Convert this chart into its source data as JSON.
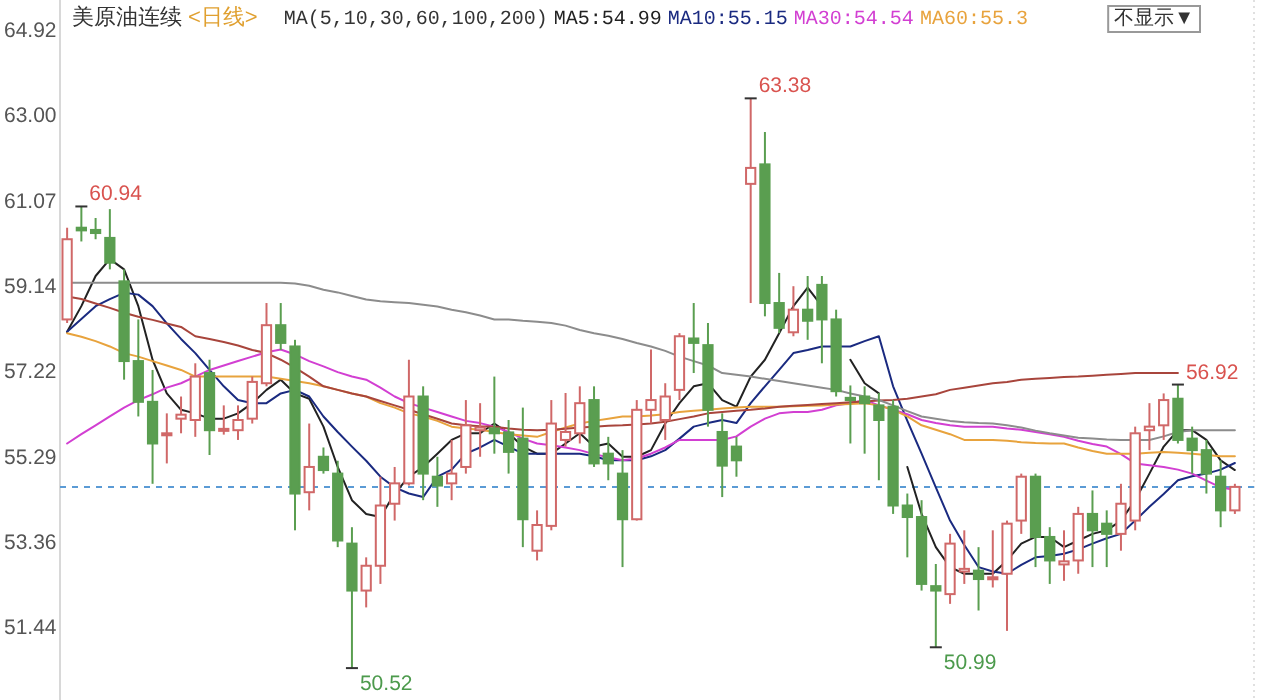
{
  "chart_data": {
    "type": "candlestick",
    "title": "美原油连续",
    "subtitle": "<日线>",
    "categories": [
      null,
      null,
      null,
      null,
      null,
      null,
      null,
      null,
      null,
      null,
      null,
      null,
      null,
      null,
      null,
      null,
      null,
      null,
      null,
      null,
      null,
      null,
      null,
      null,
      null,
      null,
      null,
      null,
      null,
      null,
      null,
      null,
      null,
      null,
      null,
      null,
      null,
      null,
      null,
      null,
      null,
      null,
      null,
      null,
      null,
      null,
      null,
      null,
      null,
      null,
      null,
      null,
      null,
      null,
      null,
      null,
      null,
      null,
      null,
      null,
      null,
      null,
      null,
      null,
      null,
      null,
      null,
      null,
      null,
      null,
      null,
      null,
      null,
      null,
      null,
      null,
      null,
      null,
      null,
      null,
      null,
      null,
      null
    ],
    "ohlc": [
      [
        58.39,
        60.46,
        58.31,
        60.2
      ],
      [
        60.46,
        60.94,
        60.15,
        60.4
      ],
      [
        60.41,
        60.68,
        60.2,
        60.34
      ],
      [
        60.23,
        60.88,
        59.52,
        59.67
      ],
      [
        59.25,
        59.52,
        57.03,
        57.45
      ],
      [
        57.45,
        58.39,
        56.2,
        56.53
      ],
      [
        56.53,
        57.25,
        54.68,
        55.59
      ],
      [
        55.78,
        56.27,
        55.14,
        55.82
      ],
      [
        56.15,
        56.65,
        55.82,
        56.24
      ],
      [
        56.12,
        57.4,
        55.74,
        57.1
      ],
      [
        57.18,
        57.48,
        55.33,
        55.89
      ],
      [
        55.88,
        56.45,
        55.79,
        55.92
      ],
      [
        55.89,
        56.45,
        55.67,
        56.12
      ],
      [
        56.15,
        57.1,
        56.04,
        56.98
      ],
      [
        56.95,
        58.76,
        56.88,
        58.26
      ],
      [
        58.26,
        58.76,
        57.7,
        57.86
      ],
      [
        57.78,
        57.93,
        53.63,
        54.46
      ],
      [
        54.49,
        56.04,
        54.08,
        55.06
      ],
      [
        55.29,
        55.5,
        54.91,
        54.99
      ],
      [
        54.91,
        55.2,
        53.25,
        53.4
      ],
      [
        53.33,
        53.7,
        50.52,
        52.27
      ],
      [
        52.27,
        53.02,
        51.89,
        52.83
      ],
      [
        52.83,
        54.84,
        52.42,
        54.19
      ],
      [
        54.23,
        55.06,
        53.85,
        54.69
      ],
      [
        54.69,
        57.48,
        54.64,
        56.65
      ],
      [
        56.65,
        56.88,
        54.31,
        54.91
      ],
      [
        54.84,
        55.29,
        54.16,
        54.64
      ],
      [
        54.69,
        55.67,
        54.31,
        54.91
      ],
      [
        55.06,
        56.57,
        54.91,
        56.0
      ],
      [
        55.89,
        56.5,
        55.29,
        55.95
      ],
      [
        55.93,
        57.1,
        55.36,
        55.82
      ],
      [
        55.84,
        56.12,
        54.91,
        55.4
      ],
      [
        55.7,
        56.4,
        53.25,
        53.88
      ],
      [
        53.17,
        54.08,
        52.95,
        53.75
      ],
      [
        53.73,
        56.57,
        53.63,
        56.04
      ],
      [
        55.67,
        56.73,
        55.52,
        55.85
      ],
      [
        55.82,
        56.88,
        55.59,
        56.5
      ],
      [
        56.57,
        56.88,
        55.06,
        55.14
      ],
      [
        55.36,
        55.74,
        54.76,
        55.14
      ],
      [
        54.91,
        55.44,
        52.8,
        53.88
      ],
      [
        53.88,
        56.57,
        53.85,
        56.35
      ],
      [
        56.35,
        57.71,
        56.04,
        56.57
      ],
      [
        56.12,
        56.95,
        55.67,
        56.65
      ],
      [
        56.8,
        58.08,
        56.57,
        58.01
      ],
      [
        57.96,
        58.76,
        57.18,
        57.86
      ],
      [
        57.81,
        58.31,
        55.97,
        56.35
      ],
      [
        55.85,
        56.27,
        54.38,
        55.09
      ],
      [
        55.52,
        55.74,
        54.84,
        55.21
      ],
      [
        61.45,
        63.38,
        58.76,
        61.81
      ],
      [
        61.89,
        62.62,
        58.46,
        58.76
      ],
      [
        58.76,
        59.44,
        58.08,
        58.2
      ],
      [
        58.1,
        59.14,
        58.01,
        58.61
      ],
      [
        58.61,
        59.37,
        57.93,
        58.36
      ],
      [
        59.17,
        59.37,
        57.4,
        58.39
      ],
      [
        58.39,
        58.61,
        56.65,
        56.77
      ],
      [
        56.62,
        56.9,
        55.59,
        56.57
      ],
      [
        56.65,
        56.88,
        55.36,
        56.5
      ],
      [
        56.45,
        56.73,
        54.76,
        56.12
      ],
      [
        56.42,
        56.57,
        54.0,
        54.19
      ],
      [
        54.19,
        54.46,
        53.02,
        53.93
      ],
      [
        53.93,
        54.31,
        52.27,
        52.42
      ],
      [
        52.37,
        52.87,
        50.99,
        52.27
      ],
      [
        52.19,
        53.55,
        51.97,
        53.33
      ],
      [
        52.7,
        53.63,
        52.42,
        52.76
      ],
      [
        52.72,
        53.25,
        51.82,
        52.53
      ],
      [
        52.53,
        53.63,
        52.34,
        52.57
      ],
      [
        52.65,
        53.85,
        51.36,
        53.78
      ],
      [
        53.85,
        54.91,
        53.55,
        54.84
      ],
      [
        54.84,
        54.91,
        52.8,
        53.48
      ],
      [
        53.48,
        53.7,
        52.42,
        52.95
      ],
      [
        52.86,
        53.63,
        52.49,
        52.93
      ],
      [
        52.95,
        54.16,
        52.65,
        54.0
      ],
      [
        54.0,
        54.53,
        52.8,
        53.63
      ],
      [
        53.78,
        54.08,
        52.8,
        53.55
      ],
      [
        53.55,
        54.68,
        53.17,
        54.23
      ],
      [
        53.85,
        55.97,
        53.63,
        55.82
      ],
      [
        55.89,
        56.5,
        55.44,
        55.97
      ],
      [
        56.0,
        56.72,
        55.67,
        56.57
      ],
      [
        56.6,
        56.92,
        55.59,
        55.67
      ],
      [
        55.7,
        55.97,
        54.91,
        55.44
      ],
      [
        55.44,
        55.67,
        54.46,
        54.91
      ],
      [
        54.84,
        55.21,
        53.7,
        54.08
      ],
      [
        54.08,
        54.68,
        54.0,
        54.61
      ]
    ],
    "colors": [
      "#d06868",
      "#5a9e50",
      "#5a9e50",
      "#5a9e50",
      "#5a9e50",
      "#5a9e50",
      "#5a9e50",
      "#d06868",
      "#d06868",
      "#d06868",
      "#5a9e50",
      "#d06868",
      "#d06868",
      "#d06868",
      "#d06868",
      "#5a9e50",
      "#5a9e50",
      "#d06868",
      "#5a9e50",
      "#5a9e50",
      "#5a9e50",
      "#d06868",
      "#d06868",
      "#d06868",
      "#d06868",
      "#5a9e50",
      "#5a9e50",
      "#d06868",
      "#d06868",
      "#d06868",
      "#5a9e50",
      "#5a9e50",
      "#5a9e50",
      "#d06868",
      "#d06868",
      "#d06868",
      "#d06868",
      "#5a9e50",
      "#5a9e50",
      "#5a9e50",
      "#d06868",
      "#d06868",
      "#d06868",
      "#d06868",
      "#5a9e50",
      "#5a9e50",
      "#5a9e50",
      "#5a9e50",
      "#d06868",
      "#5a9e50",
      "#5a9e50",
      "#d06868",
      "#5a9e50",
      "#5a9e50",
      "#5a9e50",
      "#5a9e50",
      "#5a9e50",
      "#5a9e50",
      "#5a9e50",
      "#5a9e50",
      "#5a9e50",
      "#5a9e50",
      "#d06868",
      "#d06868",
      "#5a9e50",
      "#d06868",
      "#d06868",
      "#d06868",
      "#5a9e50",
      "#5a9e50",
      "#d06868",
      "#d06868",
      "#5a9e50",
      "#5a9e50",
      "#d06868",
      "#d06868",
      "#d06868",
      "#d06868",
      "#5a9e50",
      "#5a9e50",
      "#5a9e50",
      "#5a9e50",
      "#d06868"
    ],
    "series": [
      {
        "type": "line",
        "name": "MA5:54.99",
        "color": "#222222",
        "values": [
          58.11,
          58.69,
          59.37,
          59.75,
          59.52,
          58.69,
          57.48,
          56.72,
          56.35,
          56.27,
          56.15,
          56.15,
          56.27,
          56.5,
          56.8,
          57.03,
          56.72,
          56.6,
          55.97,
          55.06,
          54.31,
          54.0,
          53.93,
          54.46,
          54.84,
          55.06,
          55.36,
          55.67,
          55.82,
          55.82,
          56.04,
          55.82,
          55.52,
          55.36,
          55.36,
          55.59,
          55.82,
          55.52,
          55.59,
          55.29,
          55.29,
          55.44,
          56.04,
          56.5,
          56.88,
          56.95,
          56.57,
          56.42,
          57.1,
          57.48,
          58.08,
          58.69,
          59.11,
          58.69,
          null,
          57.48,
          56.95,
          56.72,
          null,
          55.06,
          54.0,
          53.25,
          52.8,
          52.65,
          52.65,
          52.65,
          52.95,
          53.33,
          53.48,
          53.48,
          53.25,
          53.4,
          53.55,
          53.63,
          53.85,
          54.31,
          54.91,
          55.52,
          55.89,
          55.89,
          55.67,
          55.21,
          54.99
        ]
      },
      {
        "type": "line",
        "name": "MA10:55.15",
        "color": "#1a2a80",
        "values": [
          58.11,
          58.4,
          58.69,
          58.85,
          58.99,
          58.95,
          58.69,
          58.3,
          57.95,
          57.63,
          57.25,
          56.88,
          56.57,
          56.5,
          56.5,
          56.72,
          56.8,
          56.65,
          56.2,
          55.85,
          55.52,
          55.2,
          54.84,
          54.6,
          54.46,
          54.38,
          54.84,
          55.0,
          55.36,
          55.5,
          55.67,
          55.52,
          55.36,
          55.36,
          55.36,
          55.36,
          55.36,
          55.3,
          55.21,
          55.21,
          55.21,
          55.3,
          55.44,
          55.7,
          55.97,
          56.05,
          56.12,
          56.05,
          56.5,
          56.88,
          57.25,
          57.63,
          57.7,
          57.78,
          57.78,
          57.78,
          57.9,
          58.01,
          56.88,
          56.1,
          55.36,
          54.6,
          53.85,
          53.3,
          52.8,
          52.7,
          52.65,
          52.85,
          53.02,
          53.05,
          53.1,
          53.2,
          53.33,
          53.45,
          53.55,
          53.85,
          54.16,
          54.45,
          54.76,
          54.85,
          54.91,
          55.0,
          55.15
        ]
      },
      {
        "type": "line",
        "name": "MA30:54.54",
        "color": "#d23fd2",
        "values": [
          55.59,
          55.8,
          56.0,
          56.2,
          56.4,
          56.57,
          56.7,
          56.85,
          56.95,
          57.1,
          57.25,
          57.35,
          57.45,
          57.55,
          57.65,
          57.71,
          57.6,
          57.45,
          57.33,
          57.2,
          57.1,
          57.03,
          56.85,
          56.65,
          56.5,
          56.4,
          56.3,
          56.2,
          56.1,
          56.05,
          55.97,
          55.85,
          55.7,
          55.59,
          55.55,
          55.5,
          55.44,
          55.35,
          55.28,
          55.21,
          55.25,
          55.36,
          55.5,
          55.67,
          55.67,
          55.67,
          55.67,
          55.75,
          55.97,
          56.15,
          56.27,
          56.3,
          56.3,
          56.35,
          56.45,
          56.5,
          56.57,
          56.45,
          56.35,
          56.25,
          56.12,
          56.05,
          56.0,
          55.97,
          55.97,
          55.97,
          55.93,
          55.9,
          55.85,
          55.8,
          55.74,
          55.65,
          55.58,
          55.52,
          55.35,
          55.14,
          55.1,
          55.06,
          55.0,
          54.91,
          54.75,
          54.6,
          54.54
        ]
      },
      {
        "type": "line",
        "name": "MA60:55.3",
        "color": "#e8a33d",
        "values": [
          58.08,
          58.0,
          57.9,
          57.78,
          57.63,
          57.55,
          57.45,
          57.35,
          57.25,
          57.1,
          57.1,
          57.1,
          57.1,
          57.1,
          57.1,
          57.05,
          57.0,
          56.95,
          56.88,
          56.8,
          56.72,
          56.65,
          56.5,
          56.4,
          56.27,
          56.2,
          56.1,
          55.97,
          55.93,
          55.9,
          55.85,
          55.8,
          55.77,
          55.74,
          55.85,
          55.95,
          56.04,
          56.1,
          56.15,
          56.2,
          56.2,
          56.22,
          56.25,
          56.3,
          56.33,
          56.35,
          56.38,
          56.4,
          56.42,
          56.42,
          56.42,
          56.43,
          56.44,
          56.45,
          56.47,
          56.48,
          56.5,
          56.45,
          56.35,
          56.2,
          56.0,
          55.9,
          55.8,
          55.67,
          55.67,
          55.67,
          55.65,
          55.62,
          55.6,
          55.59,
          55.59,
          55.5,
          55.42,
          55.36,
          55.36,
          55.36,
          55.38,
          55.4,
          55.38,
          55.36,
          55.33,
          55.3,
          55.3
        ]
      },
      {
        "type": "line",
        "color": "#a8453c",
        "values": [
          58.91,
          58.85,
          58.75,
          58.65,
          58.54,
          58.45,
          58.38,
          58.3,
          58.22,
          58.01,
          57.95,
          57.88,
          57.8,
          57.7,
          57.63,
          57.48,
          57.3,
          57.1,
          56.88,
          56.8,
          56.72,
          56.65,
          56.55,
          56.45,
          56.35,
          56.25,
          56.15,
          56.04,
          56.0,
          55.98,
          55.97,
          55.93,
          55.9,
          55.89,
          55.9,
          55.92,
          55.95,
          55.97,
          55.99,
          56.0,
          56.02,
          56.04,
          56.08,
          56.14,
          56.2,
          56.27,
          56.3,
          56.33,
          56.35,
          56.38,
          56.42,
          56.44,
          56.46,
          56.48,
          56.5,
          56.52,
          56.54,
          56.56,
          56.57,
          56.6,
          56.65,
          56.7,
          56.8,
          56.85,
          56.9,
          56.95,
          56.98,
          57.03,
          57.05,
          57.07,
          57.09,
          57.1,
          57.12,
          57.14,
          57.16,
          57.18,
          57.18,
          57.18,
          57.18,
          null,
          null,
          null,
          null
        ]
      },
      {
        "type": "line",
        "color": "#8c8c8c",
        "values": [
          59.22,
          59.22,
          59.22,
          59.22,
          59.22,
          59.22,
          59.22,
          59.22,
          59.22,
          59.22,
          59.22,
          59.22,
          59.22,
          59.22,
          59.22,
          59.22,
          59.2,
          59.15,
          59.06,
          59.0,
          58.92,
          58.84,
          58.8,
          58.78,
          58.76,
          58.72,
          58.68,
          58.61,
          58.55,
          58.48,
          58.39,
          58.39,
          58.36,
          58.34,
          58.31,
          58.25,
          58.15,
          58.08,
          58.02,
          57.95,
          57.86,
          57.78,
          57.68,
          57.55,
          57.45,
          57.35,
          57.18,
          57.14,
          57.1,
          57.05,
          57.0,
          56.95,
          56.9,
          56.85,
          56.8,
          56.72,
          56.65,
          56.57,
          56.45,
          56.32,
          56.2,
          56.15,
          56.1,
          56.07,
          56.05,
          56.04,
          56.0,
          55.95,
          55.88,
          55.82,
          55.77,
          55.72,
          55.7,
          55.68,
          55.67,
          55.67,
          55.67,
          55.75,
          55.85,
          55.89,
          55.89,
          55.89,
          55.89
        ]
      }
    ],
    "ylim": [
      49.8,
      65.6
    ],
    "yticks": [
      64.92,
      {
        "value": 63,
        "label": "63.00"
      },
      61.07,
      59.14,
      57.22,
      55.29,
      53.36,
      51.44
    ],
    "tick_labels": "y",
    "legend": "top",
    "ref_lines": [
      {
        "axis": "y",
        "value": 54.61,
        "color": "#5b9bd5",
        "line_style": "dashed"
      }
    ],
    "annotations": [
      "MA(5,10,30,60,100,200)",
      "不显示▼",
      "60.94",
      "50.52",
      "63.38",
      "50.99",
      "56.92"
    ]
  }
}
